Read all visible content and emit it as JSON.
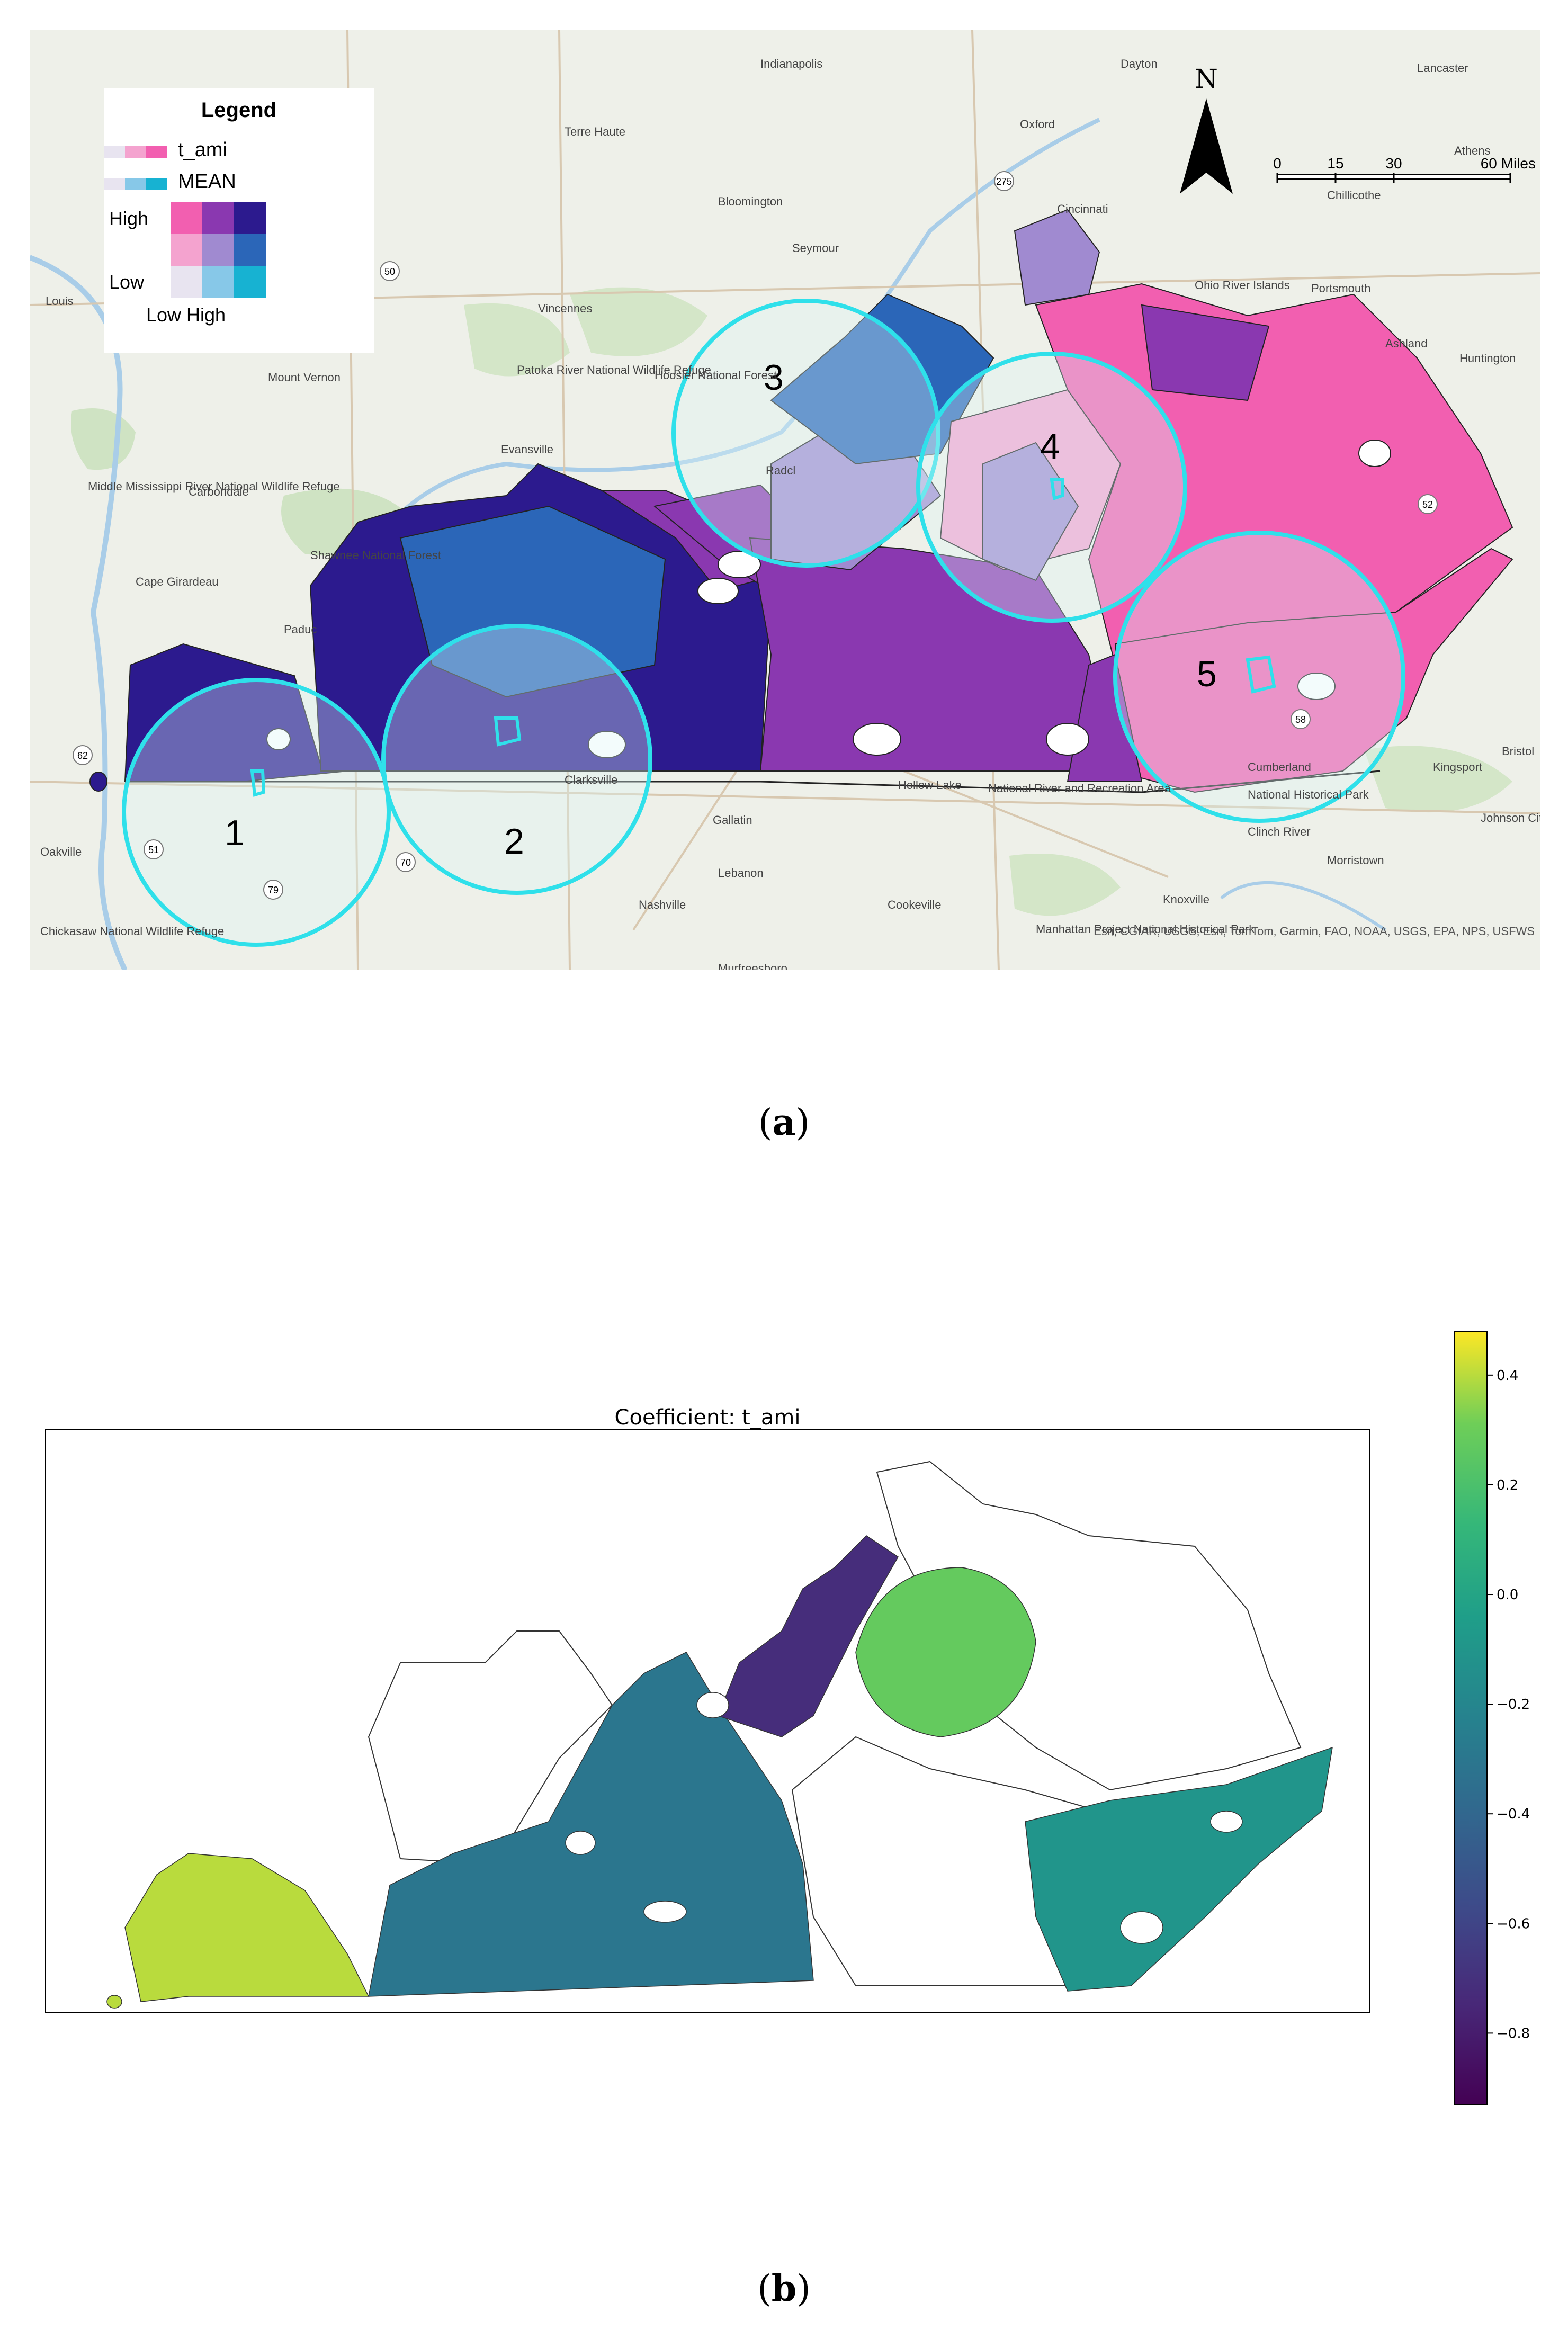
{
  "panel_a": {
    "caption_letter": "a",
    "legend": {
      "title": "Legend",
      "var1_label": "t_ami",
      "var2_label": "MEAN",
      "y_high": "High",
      "y_low": "Low",
      "x_labels": "Low High",
      "grid_colors": [
        [
          "#f25fb0",
          "#8a38b0",
          "#2c1a8e"
        ],
        [
          "#f4a3cf",
          "#a08ad0",
          "#2b66b8"
        ],
        [
          "#e8e4f0",
          "#87c8e8",
          "#17b2d2"
        ]
      ]
    },
    "north_label": "N",
    "scale_bar": {
      "ticks": [
        "0",
        "15",
        "30",
        "60 Miles"
      ]
    },
    "attribution": "Esri, CGIAR, USGS, Esri, TomTom, Garmin, FAO, NOAA, USGS, EPA, NPS, USFWS",
    "circle_labels": [
      "1",
      "2",
      "3",
      "4",
      "5"
    ],
    "place_labels": [
      "Indianapolis",
      "Dayton",
      "Lancaster",
      "Terre Haute",
      "Oxford",
      "Athens",
      "Bloomington",
      "Cincinnati",
      "Chillicothe",
      "Seymour",
      "Louis",
      "Vincennes",
      "Ohio River Islands",
      "Portsmouth",
      "Mount Vernon",
      "Patoka River National Wildlife Refuge",
      "Hoosier National Forest",
      "Ashland",
      "Huntington",
      "Evansville",
      "Middle Mississippi River National Wildlife Refuge",
      "Carbondale",
      "Shawnee National Forest",
      "Cape Girardeau",
      "Paduc",
      "Clarksville",
      "Hollow Lake",
      "National River and Recreation Area",
      "National Historical Park",
      "Clinch River",
      "Kingsport",
      "Bristol",
      "Johnson City",
      "Gallatin",
      "Oakville",
      "Lebanon",
      "Morristown",
      "Nashville",
      "Cookeville",
      "Chickasaw National Wildlife Refuge",
      "Murfreesboro",
      "Manhattan Project National Historical Park",
      "Knoxville",
      "Radcl",
      "Cumberland"
    ],
    "route_labels": [
      "50",
      "62",
      "275",
      "52",
      "58",
      "51",
      "79",
      "70"
    ]
  },
  "panel_b": {
    "caption_letter": "b",
    "chart_data": {
      "type": "heatmap",
      "title": "Coefficient: t_ami",
      "colorscale": "viridis",
      "colorbar_range": [
        -0.93,
        0.48
      ],
      "colorbar_ticks": [
        0.4,
        0.2,
        0.0,
        -0.2,
        -0.4,
        -0.6,
        -0.8
      ],
      "colorbar_tick_labels": [
        "0.4",
        "0.2",
        "0.0",
        "−0.2",
        "−0.4",
        "−0.6",
        "−0.8"
      ],
      "regions": [
        {
          "region": "1",
          "coefficient": 0.4
        },
        {
          "region": "2",
          "coefficient": -0.3
        },
        {
          "region": "3",
          "coefficient": -0.72
        },
        {
          "region": "4",
          "coefficient": 0.28
        },
        {
          "region": "5",
          "coefficient": -0.1
        }
      ]
    }
  }
}
